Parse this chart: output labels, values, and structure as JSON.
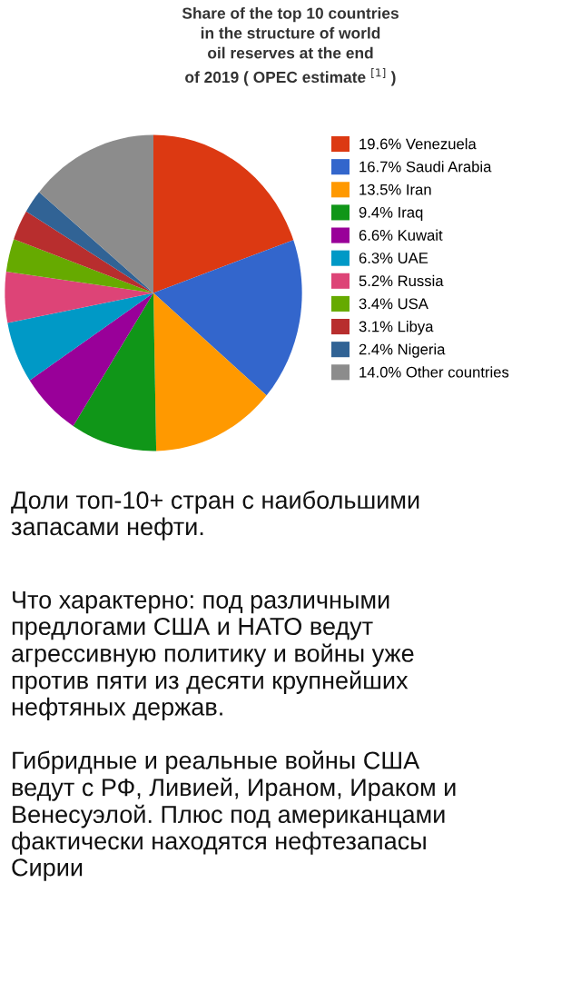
{
  "chart_data": {
    "type": "pie",
    "title": "Share of the top 10 countries\nin the structure of world\noil reserves at the end\nof 2019 ( OPEC estimate $^{[1]}$ )",
    "categories": [
      "Venezuela",
      "Saudi Arabia",
      "Iran",
      "Iraq",
      "Kuwait",
      "UAE",
      "Russia",
      "USA",
      "Libya",
      "Nigeria",
      "Other countries"
    ],
    "values": [
      19.6,
      16.7,
      13.5,
      9.4,
      6.6,
      6.3,
      5.2,
      3.4,
      3.1,
      2.4,
      14.0
    ],
    "value_labels": [
      "19.6%",
      "16.7%",
      "13.5%",
      "9.4%",
      "6.6%",
      "6.3%",
      "5.2%",
      "3.4%",
      "3.1%",
      "2.4%",
      "14.0%"
    ],
    "colors": [
      "#dc3912",
      "#3366cc",
      "#ff9900",
      "#109618",
      "#990099",
      "#0099c6",
      "#dd4477",
      "#66aa00",
      "#b82e2e",
      "#316395",
      "#8c8c8c"
    ],
    "legend": "right",
    "annotations": [
      "Доли топ-10+ стран с наибольшими\nзапасами нефти.",
      "Что характерно: под различными\nпредлогами США и НАТО ведут\nагрессивную политику и войны уже\nпротив пяти из десяти крупнейших\nнефтяных держав.\n\nГибридные и реальные войны США\nведут с РФ, Ливией, Ираном, Ираком и\nВенесуэлой. Плюс под американцами\nфактически находятся нефтезапасы\nСирии"
    ]
  }
}
